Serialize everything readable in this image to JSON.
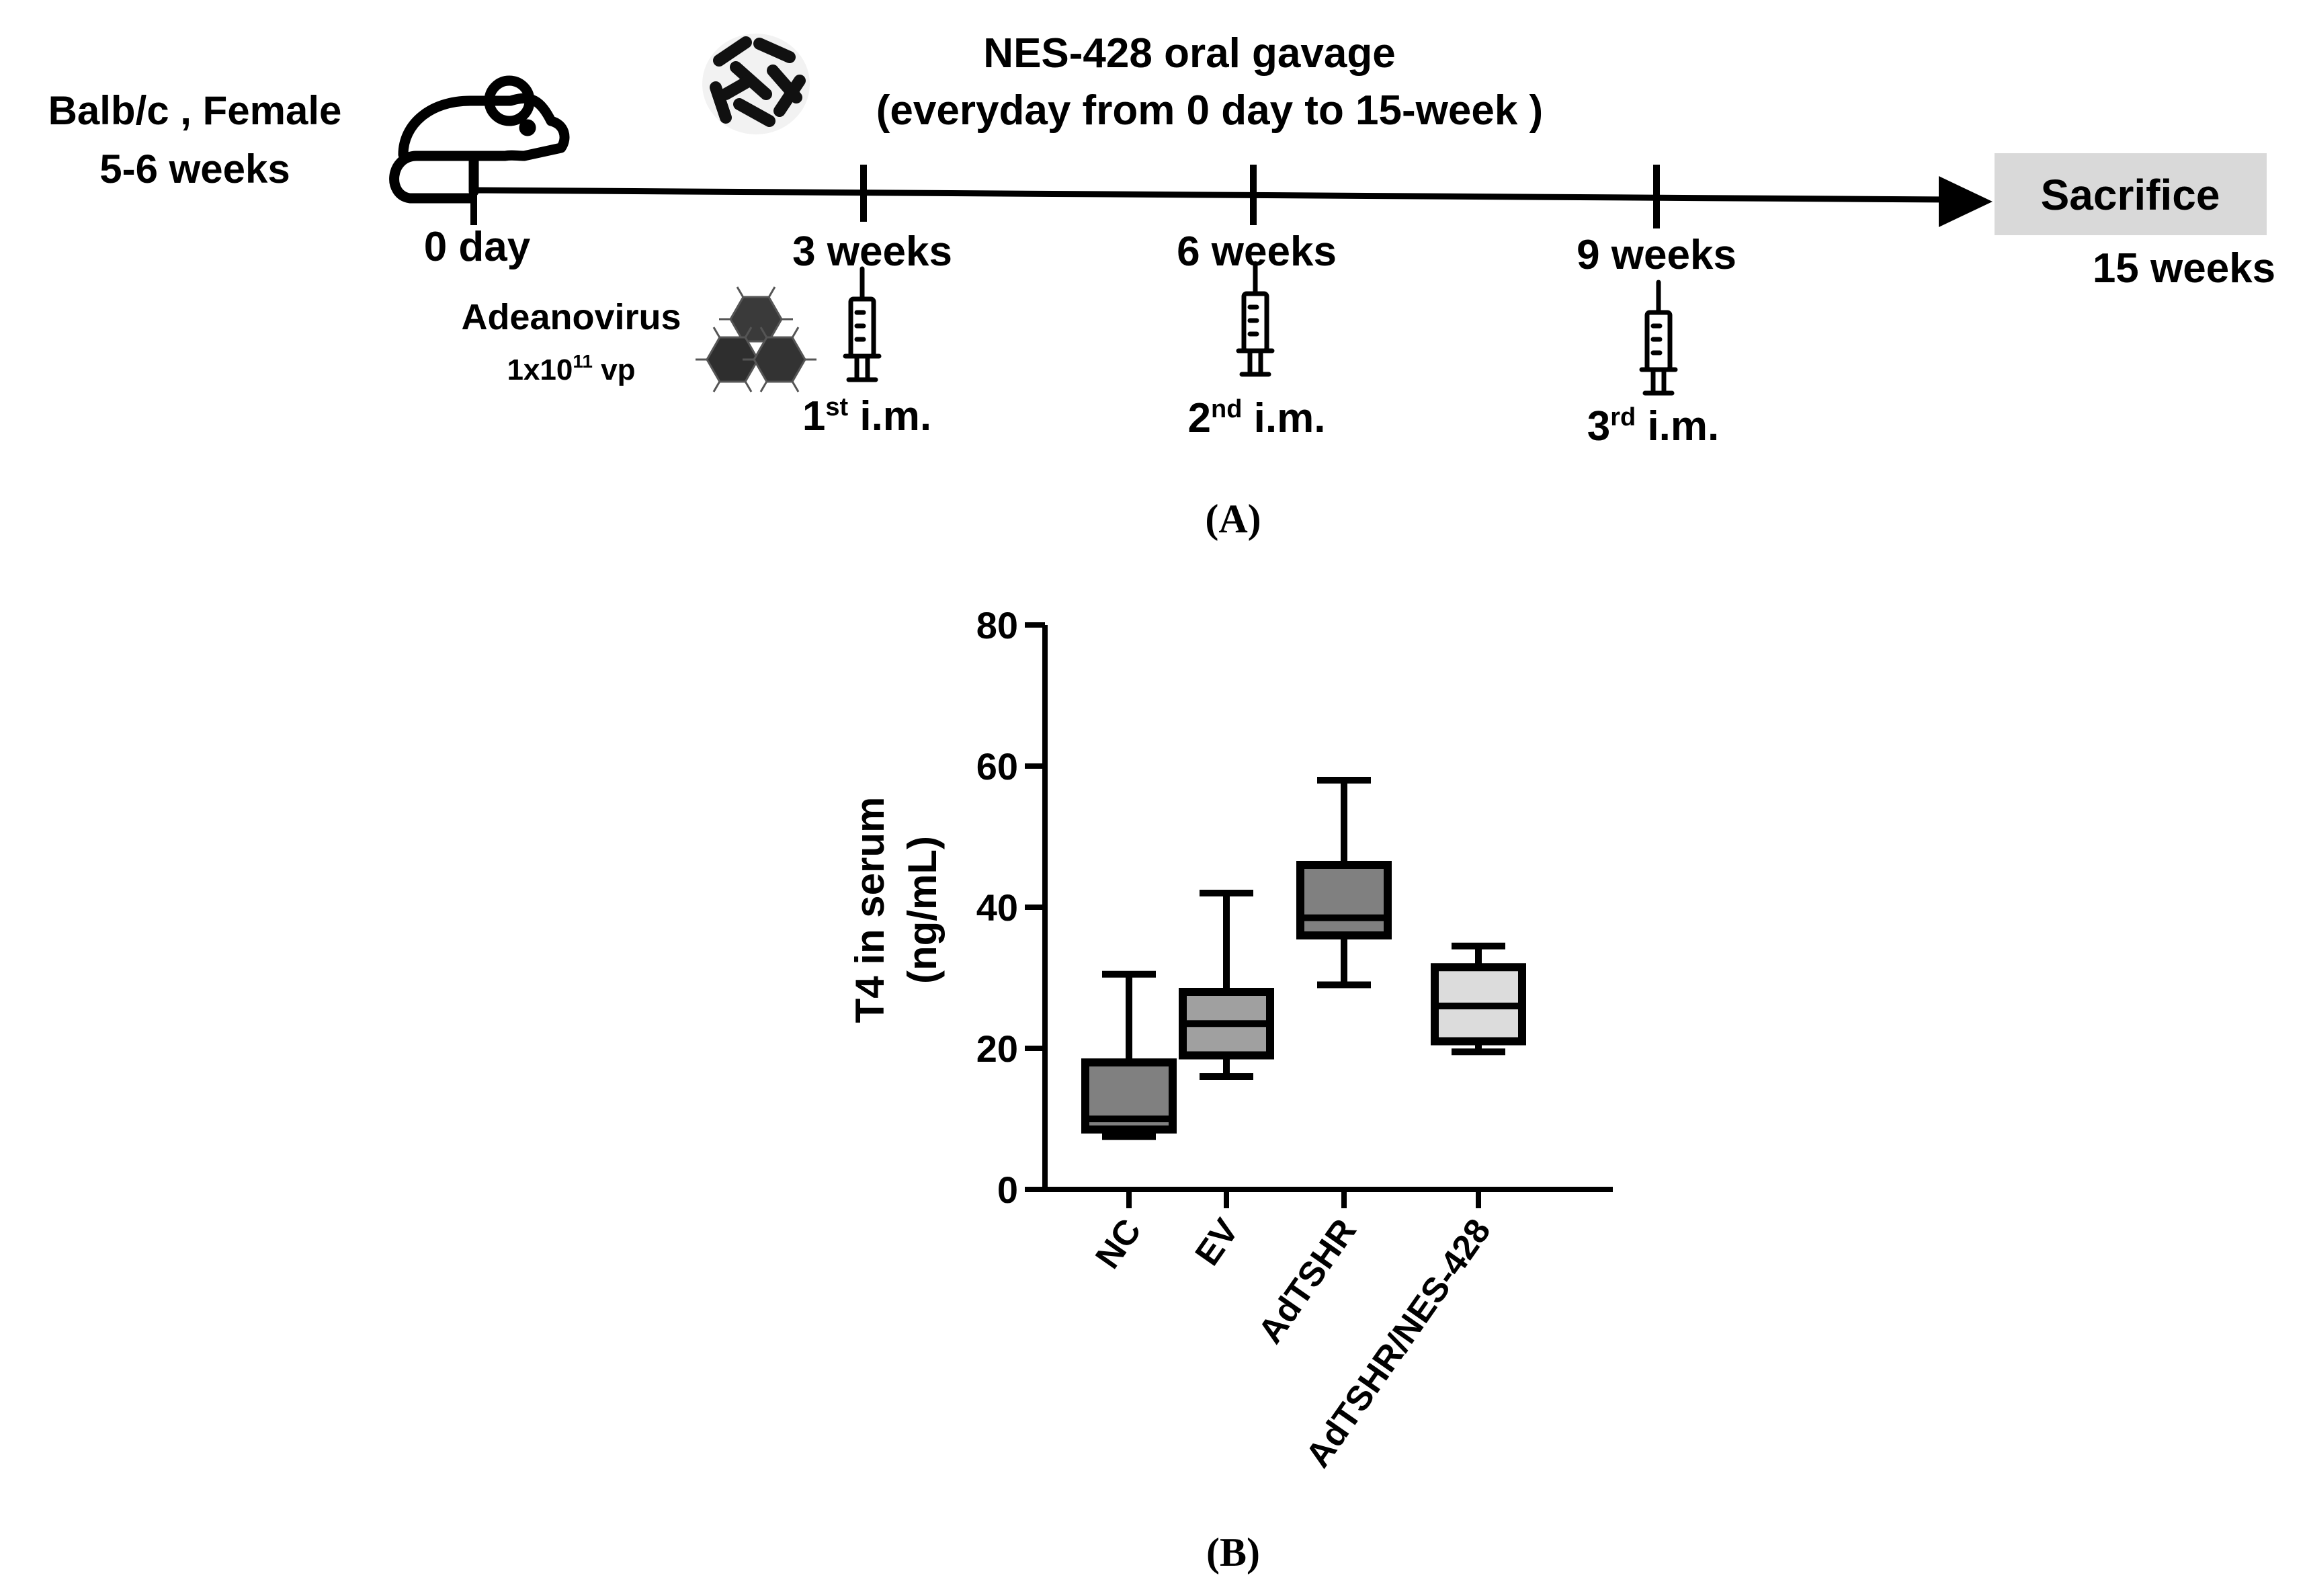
{
  "panel_a": {
    "caption": "(A)",
    "subject": {
      "line1": "Balb/c , Female",
      "line2": "5-6 weeks"
    },
    "treatment": {
      "line1": "NES-428 oral gavage",
      "line2": "(everyday from 0 day to 15-week )"
    },
    "timepoints": [
      {
        "label": "0 day"
      },
      {
        "label": "3 weeks"
      },
      {
        "label": "6 weeks"
      },
      {
        "label": "9 weeks"
      }
    ],
    "endpoint": {
      "box_label": "Sacrifice",
      "time_label": "15 weeks"
    },
    "virus": {
      "name": "Adeanovirus",
      "dose_base": "1x10",
      "dose_exp": "11",
      "dose_unit": " vp"
    },
    "injections": [
      {
        "ordinal": "1",
        "suffix": "st",
        "label": " i.m."
      },
      {
        "ordinal": "2",
        "suffix": "nd",
        "label": " i.m."
      },
      {
        "ordinal": "3",
        "suffix": "rd",
        "label": " i.m."
      }
    ],
    "icons": [
      "mouse-icon",
      "bacteria-icon",
      "virus-icon",
      "syringe-icon"
    ]
  },
  "panel_b": {
    "caption": "(B)"
  },
  "chart_data": {
    "type": "boxplot",
    "title": "",
    "ylabel_line1": "T4 in serum",
    "ylabel_line2": "(ng/mL)",
    "xlabel": "",
    "ylim": [
      0,
      80
    ],
    "yticks": [
      0,
      20,
      40,
      60,
      80
    ],
    "categories": [
      "NC",
      "EV",
      "AdTSHR",
      "AdTSHR/NES-428"
    ],
    "series": [
      {
        "name": "NC",
        "min": 7.5,
        "q1": 8.5,
        "median": 10,
        "q3": 18,
        "max": 30.5,
        "fill": "#808080"
      },
      {
        "name": "EV",
        "min": 16,
        "q1": 19,
        "median": 23.5,
        "q3": 28,
        "max": 42,
        "fill": "#a0a0a0"
      },
      {
        "name": "AdTSHR",
        "min": 29,
        "q1": 36,
        "median": 38.5,
        "q3": 46,
        "max": 58,
        "fill": "#808080"
      },
      {
        "name": "AdTSHR/NES-428",
        "min": 19.5,
        "q1": 21,
        "median": 26,
        "q3": 31.5,
        "max": 34.5,
        "fill": "#dcdcdc"
      }
    ]
  }
}
